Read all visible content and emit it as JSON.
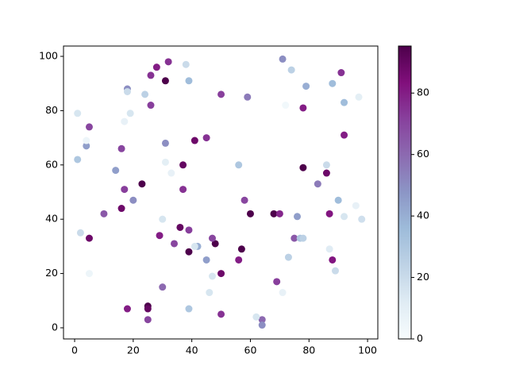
{
  "chart_data": {
    "type": "scatter",
    "x": [
      18,
      18,
      24,
      26,
      28,
      31,
      32,
      38,
      39,
      26,
      19,
      17,
      1,
      5,
      4,
      4,
      1,
      14,
      16,
      17,
      20,
      23,
      16,
      10,
      31,
      31,
      33,
      37,
      37,
      41,
      45,
      50,
      59,
      56,
      58,
      60,
      68,
      70,
      71,
      74,
      72,
      79,
      78,
      88,
      91,
      92,
      97,
      78,
      86,
      86,
      83,
      92,
      90,
      96,
      92,
      98,
      87,
      76,
      75,
      77,
      78,
      73,
      87,
      88,
      89,
      69,
      71,
      56,
      57,
      64,
      62,
      64,
      50,
      50,
      48,
      47,
      47,
      46,
      45,
      42,
      41,
      39,
      36,
      39,
      34,
      29,
      30,
      30,
      39,
      25,
      25,
      25,
      18,
      5,
      2,
      5
    ],
    "y": [
      88,
      87,
      86,
      93,
      96,
      91,
      98,
      97,
      91,
      82,
      79,
      76,
      79,
      74,
      67,
      69,
      62,
      58,
      66,
      51,
      47,
      53,
      44,
      42,
      68,
      61,
      57,
      60,
      51,
      69,
      70,
      86,
      85,
      60,
      47,
      42,
      42,
      42,
      99,
      95,
      82,
      89,
      81,
      90,
      94,
      83,
      85,
      59,
      60,
      57,
      53,
      71,
      47,
      45,
      41,
      40,
      42,
      41,
      33,
      33,
      33,
      26,
      29,
      25,
      21,
      17,
      13,
      25,
      29,
      3,
      4,
      1,
      5,
      20,
      31,
      33,
      19,
      13,
      25,
      30,
      30,
      36,
      37,
      28,
      31,
      34,
      40,
      15,
      7,
      8,
      7,
      3,
      7,
      33,
      35,
      20
    ],
    "c": [
      50,
      20,
      25,
      75,
      80,
      96,
      75,
      20,
      35,
      72,
      15,
      8,
      15,
      70,
      45,
      5,
      30,
      45,
      70,
      72,
      50,
      96,
      88,
      65,
      50,
      10,
      8,
      90,
      75,
      88,
      75,
      72,
      55,
      30,
      70,
      96,
      96,
      78,
      50,
      25,
      3,
      40,
      80,
      35,
      75,
      35,
      10,
      96,
      20,
      88,
      55,
      80,
      35,
      8,
      15,
      18,
      82,
      45,
      65,
      30,
      25,
      25,
      12,
      82,
      20,
      72,
      8,
      80,
      96,
      60,
      15,
      50,
      75,
      88,
      96,
      70,
      15,
      15,
      45,
      40,
      15,
      72,
      90,
      96,
      70,
      80,
      15,
      60,
      30,
      96,
      90,
      70,
      80,
      88,
      20,
      5
    ],
    "xlim": [
      -3.8,
      103.5
    ],
    "ylim": [
      -4.1,
      103.8
    ],
    "xticks": [
      0,
      20,
      40,
      60,
      80,
      100
    ],
    "yticks": [
      0,
      20,
      40,
      60,
      80,
      100
    ],
    "colorbar": {
      "lim": [
        0,
        95.3
      ],
      "ticks": [
        0,
        20,
        40,
        60,
        80
      ],
      "colors": [
        "#f7fcfd",
        "#e0ecf4",
        "#bfd3e6",
        "#9ebcda",
        "#8c96c6",
        "#8c6bb1",
        "#88419d",
        "#810f7c",
        "#4d004b"
      ]
    }
  }
}
